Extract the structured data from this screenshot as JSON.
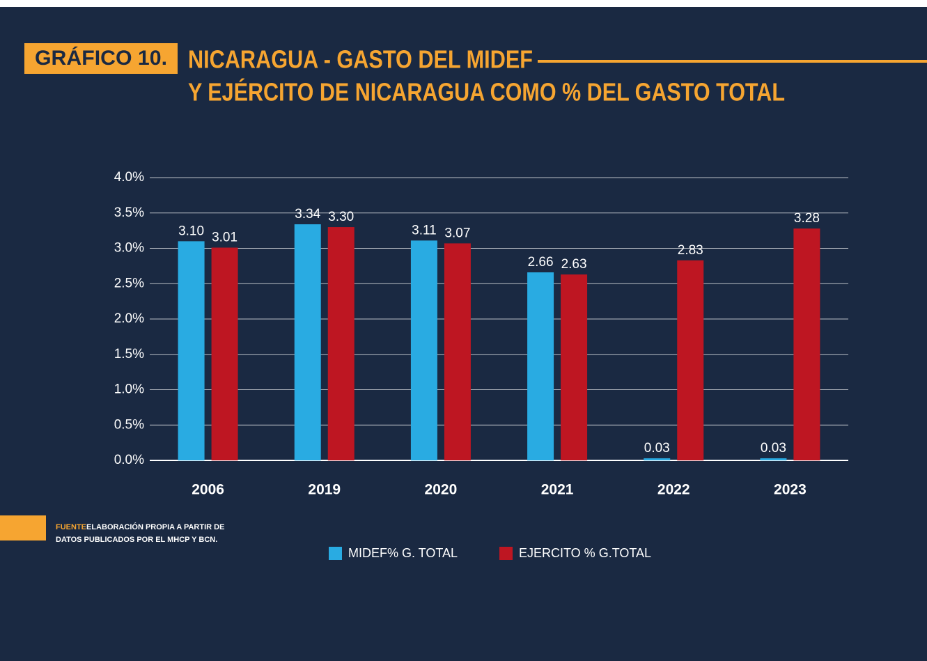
{
  "chart_data": {
    "type": "bar",
    "badge": "GRÁFICO 10.",
    "title": [
      "NICARAGUA - GASTO DEL MIDEF",
      "Y EJÉRCITO DE NICARAGUA COMO % DEL GASTO TOTAL"
    ],
    "categories": [
      "2006",
      "2019",
      "2020",
      "2021",
      "2022",
      "2023"
    ],
    "series": [
      {
        "name": "MIDEF% G. TOTAL",
        "color": "#29abe2",
        "values": [
          3.1,
          3.34,
          3.11,
          2.66,
          0.03,
          0.03
        ],
        "value_labels": [
          "3.10",
          "3.34",
          "3.11",
          "2.66",
          "0.03",
          "0.03"
        ]
      },
      {
        "name": "EJERCITO % G.TOTAL",
        "color": "#be1622",
        "values": [
          3.01,
          3.3,
          3.07,
          2.63,
          2.83,
          3.28
        ],
        "value_labels": [
          "3.01",
          "3.30",
          "3.07",
          "2.63",
          "2.83",
          "3.28"
        ]
      }
    ],
    "ylim": [
      0,
      4
    ],
    "yticks": [
      {
        "value": 0,
        "label": "0.0%"
      },
      {
        "value": 0.5,
        "label": "0.5%"
      },
      {
        "value": 1,
        "label": "1.0%"
      },
      {
        "value": 1.5,
        "label": "1.5%"
      },
      {
        "value": 2,
        "label": "2.0%"
      },
      {
        "value": 2.5,
        "label": "2.5%"
      },
      {
        "value": 3,
        "label": "3.0%"
      },
      {
        "value": 3.5,
        "label": "3.5%"
      },
      {
        "value": 4,
        "label": "4.0%"
      }
    ],
    "grid": true,
    "legend": "bottom",
    "source_label": "FUENTE:",
    "source": [
      "ELABORACIÓN PROPIA A PARTIR DE",
      "DATOS PUBLICADOS POR EL MHCP Y BCN."
    ]
  }
}
